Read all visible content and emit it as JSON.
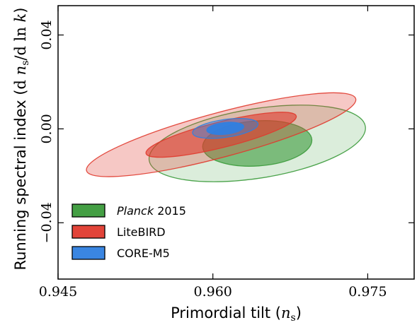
{
  "chart_data": {
    "type": "contour",
    "xlabel": "Primordial tilt (n_s)",
    "ylabel": "Running spectral index (d n_s / d ln k)",
    "xlim": [
      0.945,
      0.9795
    ],
    "ylim": [
      -0.064,
      0.0525
    ],
    "xticks": [
      0.945,
      0.96,
      0.975
    ],
    "xtick_labels": [
      "0.945",
      "0.960",
      "0.975"
    ],
    "yticks": [
      -0.04,
      0.0,
      0.04
    ],
    "ytick_labels": [
      "−0.04",
      "0.00",
      "0.04"
    ],
    "grid": false,
    "legend_position": "lower-left",
    "series": [
      {
        "name": "Planck 2015",
        "legend_italic": "Planck",
        "legend_rest": " 2015",
        "color": "#3a9a3a",
        "center": [
          0.9643,
          -0.0062
        ],
        "regions": [
          {
            "level": "95%",
            "half_width_x": 0.0106,
            "half_width_y": 0.0148,
            "tilt_deg": -9,
            "opacity": 0.18
          },
          {
            "level": "68%",
            "half_width_x": 0.0053,
            "half_width_y": 0.0096,
            "tilt_deg": -4,
            "opacity": 0.6
          }
        ]
      },
      {
        "name": "LiteBIRD",
        "color": "#e03a2e",
        "center": [
          0.9608,
          -0.0025
        ],
        "regions": [
          {
            "level": "95%",
            "half_width_x": 0.0135,
            "half_width_y": 0.0095,
            "tilt_deg": -15,
            "opacity": 0.28
          },
          {
            "level": "68%",
            "half_width_x": 0.0075,
            "half_width_y": 0.0055,
            "tilt_deg": -14,
            "opacity": 0.6
          }
        ]
      },
      {
        "name": "CORE-M5",
        "color": "#2f7fe0",
        "center": [
          0.9612,
          0.0002
        ],
        "regions": [
          {
            "level": "95%",
            "half_width_x": 0.0032,
            "half_width_y": 0.0038,
            "tilt_deg": -8,
            "opacity": 0.42
          },
          {
            "level": "68%",
            "half_width_x": 0.0018,
            "half_width_y": 0.0025,
            "tilt_deg": -6,
            "opacity": 0.95
          }
        ]
      }
    ]
  }
}
